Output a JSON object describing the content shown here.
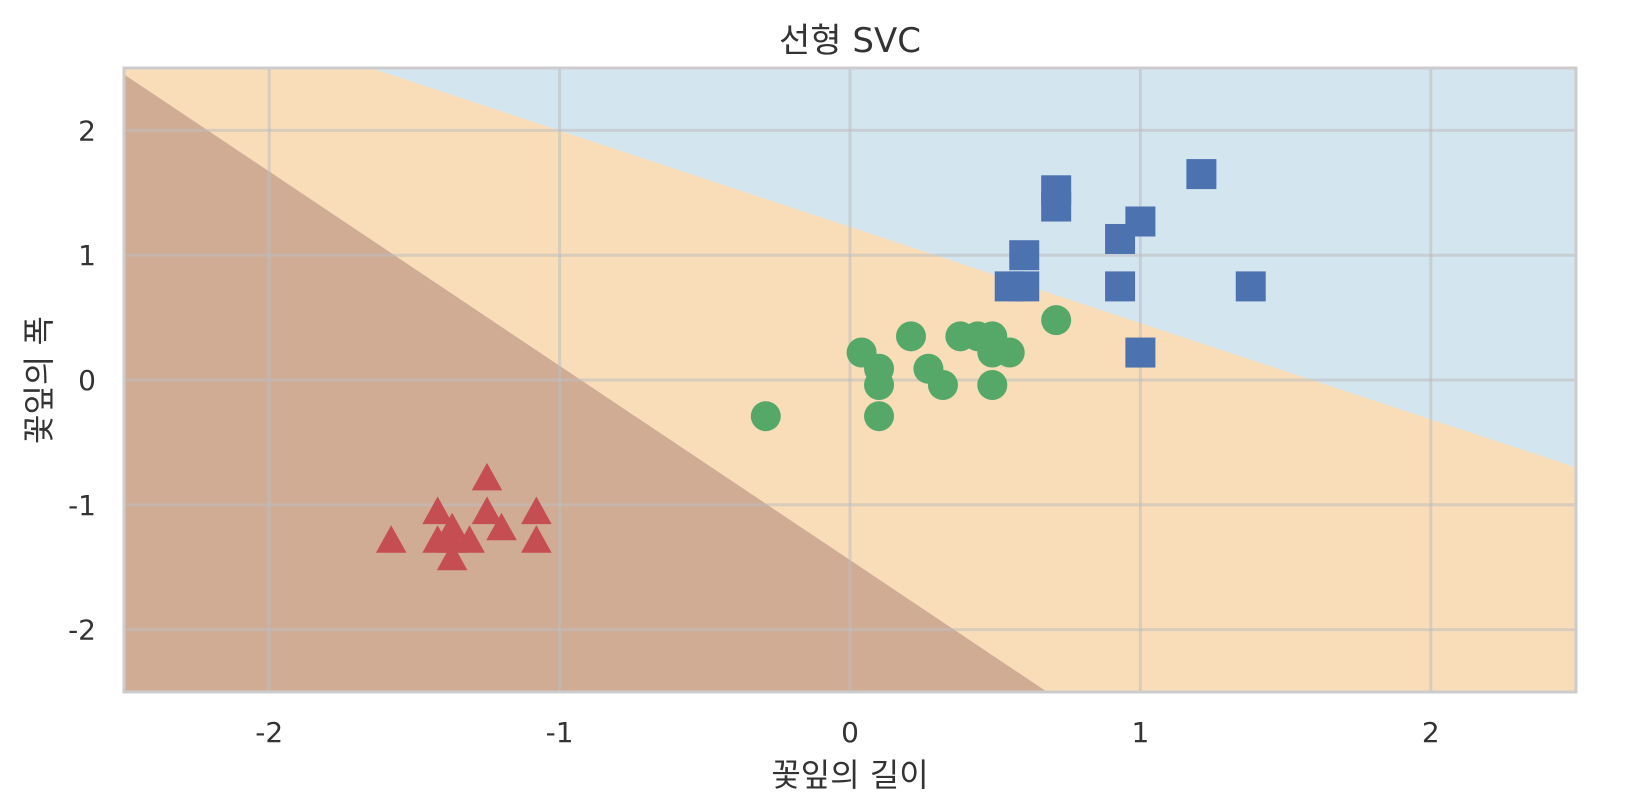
{
  "chart_data": {
    "type": "scatter",
    "title": "선형 SVC",
    "xlabel": "꽃잎의 길이",
    "ylabel": "꽃잎의 폭",
    "xlim": [
      -2.5,
      2.5
    ],
    "ylim": [
      -2.5,
      2.5
    ],
    "x_ticks": [
      -2,
      -1,
      0,
      1,
      2
    ],
    "y_ticks": [
      -2,
      -1,
      0,
      1,
      2
    ],
    "x_tick_labels": [
      "-2",
      "-1",
      "0",
      "1",
      "2"
    ],
    "y_tick_labels": [
      "-2",
      "-1",
      "0",
      "1",
      "2"
    ],
    "grid": true,
    "decision_regions": [
      {
        "class": 0,
        "color": "#d1ac95",
        "polygon": [
          [
            -2.5,
            2.45
          ],
          [
            0.68,
            -2.5
          ],
          [
            -2.5,
            -2.5
          ]
        ]
      },
      {
        "class": 1,
        "color": "#f8ddb8",
        "polygon": [
          [
            -2.5,
            2.5
          ],
          [
            -1.65,
            2.5
          ],
          [
            2.5,
            -0.7
          ],
          [
            2.5,
            -2.5
          ],
          [
            0.68,
            -2.5
          ],
          [
            -2.5,
            2.45
          ]
        ]
      },
      {
        "class": 2,
        "color": "#d3e5ef",
        "polygon": [
          [
            -1.65,
            2.5
          ],
          [
            2.5,
            2.5
          ],
          [
            2.5,
            -0.7
          ]
        ]
      }
    ],
    "series": [
      {
        "marker": "triangle",
        "color": "#c44e52",
        "points": [
          [
            -1.25,
            -0.8
          ],
          [
            -1.42,
            -1.07
          ],
          [
            -1.25,
            -1.07
          ],
          [
            -1.08,
            -1.07
          ],
          [
            -1.37,
            -1.2
          ],
          [
            -1.2,
            -1.2
          ],
          [
            -1.42,
            -1.3
          ],
          [
            -1.37,
            -1.3
          ],
          [
            -1.31,
            -1.3
          ],
          [
            -1.08,
            -1.3
          ],
          [
            -1.58,
            -1.3
          ],
          [
            -1.37,
            -1.44
          ]
        ]
      },
      {
        "marker": "circle",
        "color": "#55a868",
        "points": [
          [
            -0.29,
            -0.29
          ],
          [
            0.04,
            0.22
          ],
          [
            0.1,
            0.09
          ],
          [
            0.1,
            -0.04
          ],
          [
            0.1,
            -0.29
          ],
          [
            0.21,
            0.35
          ],
          [
            0.27,
            0.09
          ],
          [
            0.32,
            -0.04
          ],
          [
            0.38,
            0.35
          ],
          [
            0.44,
            0.35
          ],
          [
            0.49,
            0.35
          ],
          [
            0.49,
            0.22
          ],
          [
            0.55,
            0.22
          ],
          [
            0.49,
            -0.04
          ],
          [
            0.71,
            0.48
          ]
        ]
      },
      {
        "marker": "square",
        "color": "#4c72b0",
        "points": [
          [
            0.71,
            1.52
          ],
          [
            0.71,
            1.39
          ],
          [
            1.21,
            1.65
          ],
          [
            1.0,
            1.27
          ],
          [
            0.93,
            1.13
          ],
          [
            0.6,
            1.0
          ],
          [
            0.55,
            0.75
          ],
          [
            0.6,
            0.75
          ],
          [
            0.93,
            0.75
          ],
          [
            1.38,
            0.75
          ],
          [
            1.0,
            0.22
          ]
        ]
      }
    ]
  },
  "style": {
    "grid_color": "#ffffff",
    "spine_color": "#cccccc",
    "text_color": "#333333"
  }
}
